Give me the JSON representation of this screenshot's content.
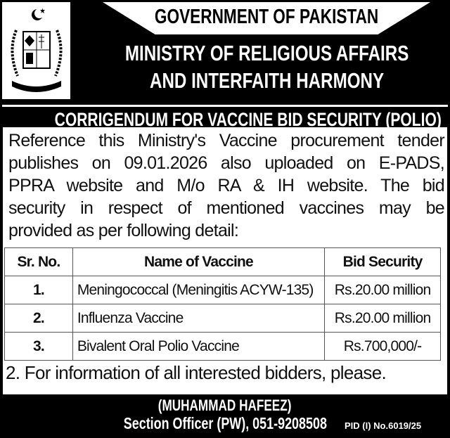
{
  "header": {
    "line1": "GOVERNMENT OF PAKISTAN",
    "line2": "MINISTRY OF RELIGIOUS AFFAIRS",
    "line3": "AND INTERFAITH HARMONY"
  },
  "title": "CORRIGENDUM FOR VACCINE BID SECURITY (POLIO)",
  "body_lines": [
    "Reference this Ministry's Vaccine procurement tender",
    "publishes on 09.01.2026 also uploaded on E-PADS,",
    "PPRA website and M/o RA & IH website. The bid",
    "security in respect of mentioned vaccines may be",
    "provided as per following detail:"
  ],
  "table": {
    "headers": [
      "Sr. No.",
      "Name of Vaccine",
      "Bid Security"
    ],
    "rows": [
      [
        "1.",
        "Meningococcal (Meningitis ACYW-135)",
        "Rs.20.00 million"
      ],
      [
        "2.",
        "Influenza Vaccine",
        "Rs.20.00 million"
      ],
      [
        "3.",
        "Bivalent Oral Polio Vaccine",
        "Rs.700,000/-"
      ]
    ]
  },
  "note": "2. For information of all interested bidders, please.",
  "signature": {
    "name": "(MUHAMMAD HAFEEZ)",
    "designation": "Section Officer (PW), 051-9208508"
  },
  "pid": "PID (I) No.6019/25",
  "emblem_icon": "state-emblem-of-pakistan"
}
